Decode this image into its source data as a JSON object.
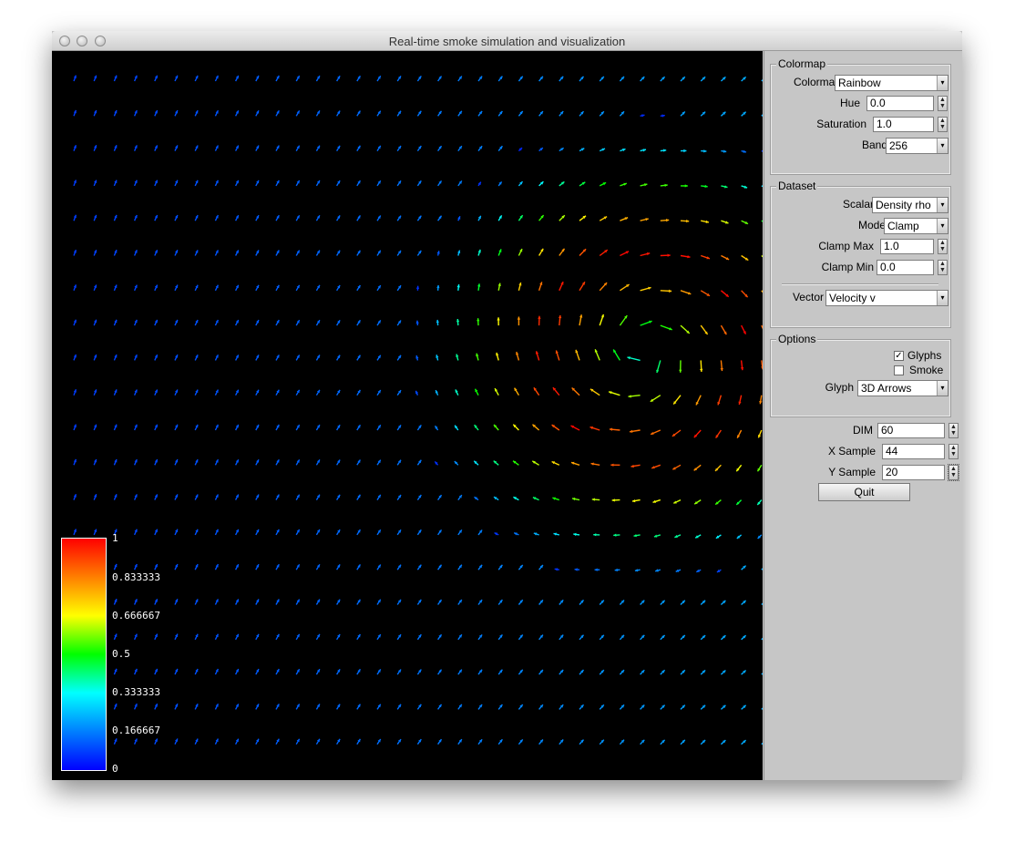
{
  "window": {
    "title": "Real-time smoke simulation and visualization"
  },
  "colormap_group": {
    "legend": "Colormap",
    "colormap_label": "Colormap",
    "colormap_value": "Rainbow",
    "hue_label": "Hue",
    "hue_value": "0.0",
    "saturation_label": "Saturation",
    "saturation_value": "1.0",
    "band_label": "Band",
    "band_value": "256"
  },
  "dataset_group": {
    "legend": "Dataset",
    "scalar_label": "Scalar",
    "scalar_value": "Density rho",
    "mode_label": "Mode",
    "mode_value": "Clamp",
    "clamp_max_label": "Clamp Max",
    "clamp_max_value": "1.0",
    "clamp_min_label": "Clamp Min",
    "clamp_min_value": "0.0",
    "vector_label": "Vector",
    "vector_value": "Velocity v"
  },
  "options_group": {
    "legend": "Options",
    "glyphs_label": "Glyphs",
    "glyphs_checked": true,
    "smoke_label": "Smoke",
    "smoke_checked": false,
    "glyph_label": "Glyph",
    "glyph_value": "3D Arrows"
  },
  "sampling": {
    "dim_label": "DIM",
    "dim_value": "60",
    "x_sample_label": "X Sample",
    "x_sample_value": "44",
    "y_sample_label": "Y Sample",
    "y_sample_value": "20"
  },
  "quit_label": "Quit",
  "color_legend": {
    "ticks": [
      "1",
      "0.833333",
      "0.666667",
      "0.5",
      "0.333333",
      "0.166667",
      "0"
    ],
    "colors": [
      "#0000ff",
      "#00ffff",
      "#00ff00",
      "#ffff00",
      "#ff0000"
    ]
  }
}
